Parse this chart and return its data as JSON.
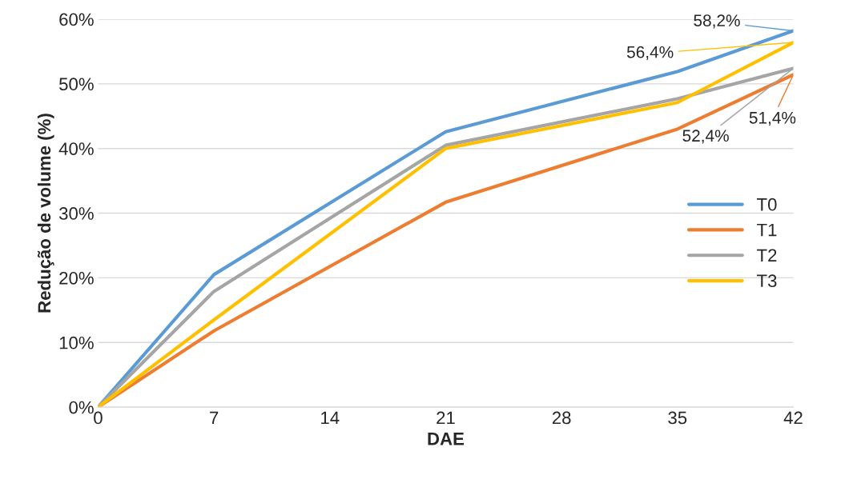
{
  "chart_data": {
    "type": "line",
    "xlabel": "DAE",
    "ylabel": "Redução de volume (%)",
    "x": [
      0,
      7,
      21,
      35,
      42
    ],
    "xlim": [
      0,
      42
    ],
    "xticks": [
      0,
      7,
      14,
      21,
      28,
      35,
      42
    ],
    "ylim": [
      0,
      60
    ],
    "yticks": [
      {
        "value": 0,
        "label": "0%"
      },
      {
        "value": 10,
        "label": "10%"
      },
      {
        "value": 20,
        "label": "20%"
      },
      {
        "value": 30,
        "label": "30%"
      },
      {
        "value": 40,
        "label": "40%"
      },
      {
        "value": 50,
        "label": "50%"
      },
      {
        "value": 60,
        "label": "60%"
      }
    ],
    "grid": "y",
    "legend": "right",
    "marker": "none",
    "line_style": "solid",
    "series": [
      {
        "name": "T0",
        "color": "#5b9bd5",
        "values": [
          0,
          20.5,
          42.6,
          51.9,
          58.2
        ],
        "value_labels": [
          null,
          null,
          null,
          null,
          "58,2%"
        ]
      },
      {
        "name": "T1",
        "color": "#ed7d31",
        "values": [
          0,
          11.8,
          31.7,
          43.0,
          51.4
        ],
        "value_labels": [
          null,
          null,
          null,
          null,
          "51,4%"
        ]
      },
      {
        "name": "T2",
        "color": "#a5a5a5",
        "values": [
          0,
          17.9,
          40.5,
          47.7,
          52.4
        ],
        "value_labels": [
          null,
          null,
          null,
          null,
          "52,4%"
        ]
      },
      {
        "name": "T3",
        "color": "#ffc000",
        "values": [
          0,
          13.5,
          40.0,
          47.1,
          56.4
        ],
        "value_labels": [
          null,
          null,
          null,
          null,
          "56,4%"
        ]
      }
    ]
  }
}
